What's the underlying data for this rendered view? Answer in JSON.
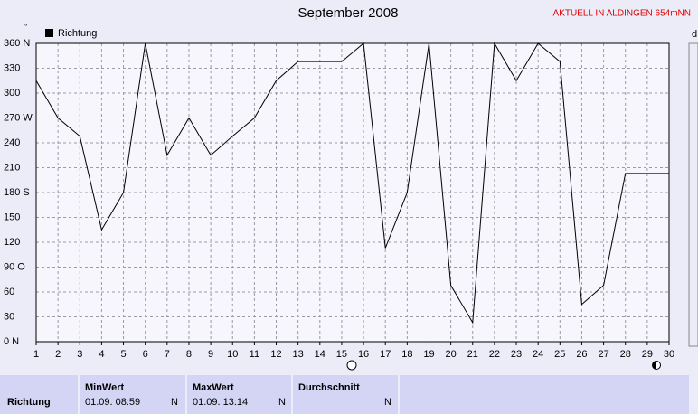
{
  "chart_data": {
    "type": "line",
    "title": "September 2008",
    "station": "AKTUELL IN ALDINGEN 654mNN",
    "y_unit": "°",
    "right_label": "d",
    "x": [
      1,
      2,
      3,
      4,
      5,
      6,
      7,
      8,
      9,
      10,
      11,
      12,
      13,
      14,
      15,
      16,
      17,
      18,
      19,
      20,
      21,
      22,
      23,
      24,
      25,
      26,
      27,
      28,
      29,
      30
    ],
    "series": [
      {
        "name": "Richtung",
        "color": "#000000",
        "values": [
          315,
          270,
          248,
          135,
          180,
          360,
          225,
          270,
          225,
          248,
          270,
          315,
          338,
          338,
          338,
          360,
          113,
          180,
          360,
          68,
          23,
          360,
          315,
          360,
          338,
          45,
          68,
          203,
          203,
          203
        ]
      }
    ],
    "xlim": [
      1,
      30
    ],
    "xticks": [
      1,
      2,
      3,
      4,
      5,
      6,
      7,
      8,
      9,
      10,
      11,
      12,
      13,
      14,
      15,
      16,
      17,
      18,
      19,
      20,
      21,
      22,
      23,
      24,
      25,
      26,
      27,
      28,
      29,
      30
    ],
    "ylim": [
      0,
      360
    ],
    "yticks": [
      {
        "value": 0,
        "label": "0 N"
      },
      30,
      60,
      {
        "value": 90,
        "label": "90 O"
      },
      120,
      150,
      {
        "value": 180,
        "label": "180 S"
      },
      210,
      240,
      {
        "value": 270,
        "label": "270 W"
      },
      300,
      330,
      {
        "value": 360,
        "label": "360 N"
      }
    ],
    "grid": true,
    "legend": "top-left"
  },
  "summary": {
    "label": "Richtung",
    "columns": [
      {
        "header": "MinWert",
        "date": "01.09.  08:59",
        "dir": "N"
      },
      {
        "header": "MaxWert",
        "date": "01.09.  13:14",
        "dir": "N"
      },
      {
        "header": "Durchschnitt",
        "dir": "N"
      }
    ]
  }
}
